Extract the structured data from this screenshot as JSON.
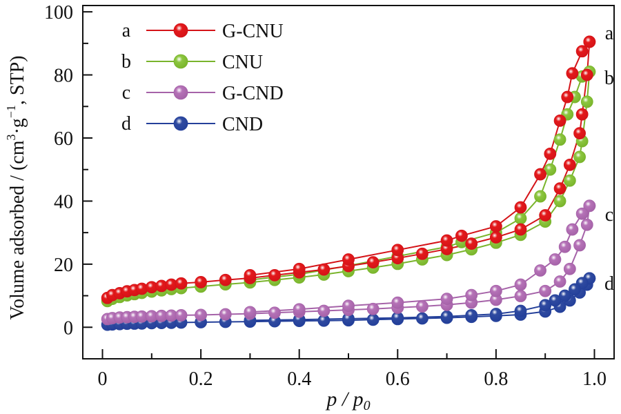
{
  "chart_data": {
    "type": "scatter",
    "xlabel": "p / p",
    "xlabel_sub": "0",
    "ylabel_parts": [
      "Volume adsorbed / (cm",
      "3",
      "·g",
      "−1",
      ", STP)"
    ],
    "xlim": [
      -0.04,
      1.04
    ],
    "ylim": [
      -10,
      102
    ],
    "xticks": [
      0,
      0.2,
      0.4,
      0.6,
      0.8,
      1.0
    ],
    "xtick_labels": [
      "0",
      "0.2",
      "0.4",
      "0.6",
      "0.8",
      "1.0"
    ],
    "yticks": [
      0,
      20,
      40,
      60,
      80,
      100
    ],
    "ytick_labels": [
      "0",
      "20",
      "40",
      "60",
      "80",
      "100"
    ],
    "legend_position": "top-left",
    "series": [
      {
        "name": "G-CNU",
        "letter": "a",
        "color": "#e3191b",
        "line_color": "#d41318",
        "adsorption": [
          [
            0.01,
            9.3
          ],
          [
            0.02,
            10.2
          ],
          [
            0.035,
            10.8
          ],
          [
            0.05,
            11.4
          ],
          [
            0.065,
            11.8
          ],
          [
            0.08,
            12.2
          ],
          [
            0.1,
            12.7
          ],
          [
            0.12,
            13.1
          ],
          [
            0.14,
            13.5
          ],
          [
            0.16,
            13.9
          ],
          [
            0.2,
            14.3
          ],
          [
            0.25,
            15.0
          ],
          [
            0.3,
            15.6
          ],
          [
            0.35,
            16.5
          ],
          [
            0.4,
            17.4
          ],
          [
            0.45,
            18.3
          ],
          [
            0.5,
            19.4
          ],
          [
            0.55,
            20.6
          ],
          [
            0.6,
            21.9
          ],
          [
            0.65,
            23.3
          ],
          [
            0.7,
            24.8
          ],
          [
            0.75,
            26.5
          ],
          [
            0.8,
            28.5
          ],
          [
            0.85,
            31.0
          ],
          [
            0.9,
            35.5
          ],
          [
            0.93,
            44.0
          ],
          [
            0.95,
            51.5
          ],
          [
            0.97,
            61.5
          ],
          [
            0.975,
            67.5
          ],
          [
            0.985,
            80.0
          ],
          [
            0.99,
            90.5
          ]
        ],
        "desorption": [
          [
            0.99,
            90.5
          ],
          [
            0.975,
            87.5
          ],
          [
            0.955,
            80.5
          ],
          [
            0.945,
            73.0
          ],
          [
            0.93,
            65.5
          ],
          [
            0.91,
            55.0
          ],
          [
            0.89,
            48.5
          ],
          [
            0.85,
            38.0
          ],
          [
            0.8,
            32.0
          ],
          [
            0.73,
            29.0
          ],
          [
            0.7,
            27.5
          ],
          [
            0.6,
            24.5
          ],
          [
            0.5,
            21.5
          ],
          [
            0.4,
            18.5
          ],
          [
            0.3,
            16.5
          ]
        ]
      },
      {
        "name": "CNU",
        "letter": "b",
        "color": "#8cc63f",
        "line_color": "#79b42b",
        "adsorption": [
          [
            0.01,
            8.3
          ],
          [
            0.02,
            9.0
          ],
          [
            0.035,
            9.6
          ],
          [
            0.05,
            10.1
          ],
          [
            0.065,
            10.5
          ],
          [
            0.08,
            10.9
          ],
          [
            0.1,
            11.3
          ],
          [
            0.12,
            11.7
          ],
          [
            0.14,
            12.1
          ],
          [
            0.16,
            12.4
          ],
          [
            0.2,
            12.9
          ],
          [
            0.25,
            13.6
          ],
          [
            0.3,
            14.2
          ],
          [
            0.35,
            15.0
          ],
          [
            0.4,
            15.8
          ],
          [
            0.45,
            16.7
          ],
          [
            0.5,
            17.8
          ],
          [
            0.55,
            18.9
          ],
          [
            0.6,
            20.1
          ],
          [
            0.65,
            21.5
          ],
          [
            0.7,
            22.9
          ],
          [
            0.75,
            24.7
          ],
          [
            0.8,
            26.8
          ],
          [
            0.85,
            29.3
          ],
          [
            0.9,
            33.5
          ],
          [
            0.93,
            40.0
          ],
          [
            0.95,
            46.5
          ],
          [
            0.97,
            54.0
          ],
          [
            0.975,
            59.0
          ],
          [
            0.985,
            71.5
          ],
          [
            0.99,
            81.0
          ]
        ],
        "desorption": [
          [
            0.99,
            81.0
          ],
          [
            0.975,
            79.5
          ],
          [
            0.96,
            73.0
          ],
          [
            0.945,
            67.5
          ],
          [
            0.93,
            59.5
          ],
          [
            0.91,
            50.0
          ],
          [
            0.89,
            41.5
          ],
          [
            0.85,
            34.5
          ],
          [
            0.8,
            30.0
          ],
          [
            0.73,
            27.0
          ],
          [
            0.7,
            25.5
          ],
          [
            0.6,
            22.5
          ],
          [
            0.5,
            19.5
          ],
          [
            0.4,
            16.8
          ],
          [
            0.3,
            15.0
          ]
        ]
      },
      {
        "name": "G-CND",
        "letter": "c",
        "color": "#b572b7",
        "line_color": "#a562a8",
        "adsorption": [
          [
            0.01,
            2.6
          ],
          [
            0.02,
            2.9
          ],
          [
            0.035,
            3.1
          ],
          [
            0.05,
            3.2
          ],
          [
            0.065,
            3.3
          ],
          [
            0.08,
            3.4
          ],
          [
            0.1,
            3.5
          ],
          [
            0.12,
            3.6
          ],
          [
            0.14,
            3.7
          ],
          [
            0.16,
            3.8
          ],
          [
            0.2,
            3.9
          ],
          [
            0.25,
            4.1
          ],
          [
            0.3,
            4.3
          ],
          [
            0.35,
            4.6
          ],
          [
            0.4,
            4.9
          ],
          [
            0.45,
            5.2
          ],
          [
            0.5,
            5.5
          ],
          [
            0.55,
            5.8
          ],
          [
            0.6,
            6.2
          ],
          [
            0.65,
            6.6
          ],
          [
            0.7,
            7.1
          ],
          [
            0.75,
            7.8
          ],
          [
            0.8,
            8.7
          ],
          [
            0.85,
            9.9
          ],
          [
            0.9,
            11.5
          ],
          [
            0.93,
            14.5
          ],
          [
            0.95,
            18.5
          ],
          [
            0.97,
            26.0
          ],
          [
            0.985,
            32.5
          ],
          [
            0.99,
            38.5
          ]
        ],
        "desorption": [
          [
            0.99,
            38.5
          ],
          [
            0.975,
            36.0
          ],
          [
            0.955,
            31.0
          ],
          [
            0.94,
            25.5
          ],
          [
            0.92,
            21.5
          ],
          [
            0.89,
            18.0
          ],
          [
            0.85,
            13.5
          ],
          [
            0.8,
            11.5
          ],
          [
            0.75,
            10.2
          ],
          [
            0.7,
            9.0
          ],
          [
            0.6,
            7.8
          ],
          [
            0.5,
            6.8
          ],
          [
            0.4,
            5.7
          ],
          [
            0.3,
            4.8
          ]
        ]
      },
      {
        "name": "CND",
        "letter": "d",
        "color": "#2f4aa0",
        "line_color": "#24409a",
        "adsorption": [
          [
            0.01,
            0.8
          ],
          [
            0.02,
            0.9
          ],
          [
            0.035,
            1.0
          ],
          [
            0.05,
            1.1
          ],
          [
            0.065,
            1.15
          ],
          [
            0.08,
            1.2
          ],
          [
            0.1,
            1.3
          ],
          [
            0.12,
            1.35
          ],
          [
            0.14,
            1.4
          ],
          [
            0.16,
            1.5
          ],
          [
            0.2,
            1.6
          ],
          [
            0.25,
            1.7
          ],
          [
            0.3,
            1.8
          ],
          [
            0.35,
            1.9
          ],
          [
            0.4,
            2.0
          ],
          [
            0.45,
            2.1
          ],
          [
            0.5,
            2.2
          ],
          [
            0.55,
            2.4
          ],
          [
            0.6,
            2.6
          ],
          [
            0.65,
            2.8
          ],
          [
            0.7,
            3.0
          ],
          [
            0.75,
            3.3
          ],
          [
            0.8,
            3.6
          ],
          [
            0.85,
            4.0
          ],
          [
            0.9,
            5.0
          ],
          [
            0.93,
            6.5
          ],
          [
            0.95,
            8.5
          ],
          [
            0.97,
            11.0
          ],
          [
            0.985,
            13.5
          ],
          [
            0.99,
            15.5
          ]
        ],
        "desorption": [
          [
            0.99,
            15.5
          ],
          [
            0.975,
            14.0
          ],
          [
            0.96,
            12.0
          ],
          [
            0.94,
            10.0
          ],
          [
            0.92,
            8.5
          ],
          [
            0.9,
            7.0
          ],
          [
            0.85,
            5.2
          ],
          [
            0.8,
            4.2
          ],
          [
            0.75,
            3.8
          ],
          [
            0.7,
            3.4
          ],
          [
            0.6,
            3.0
          ],
          [
            0.5,
            2.7
          ],
          [
            0.4,
            2.4
          ],
          [
            0.3,
            2.2
          ]
        ]
      }
    ]
  }
}
